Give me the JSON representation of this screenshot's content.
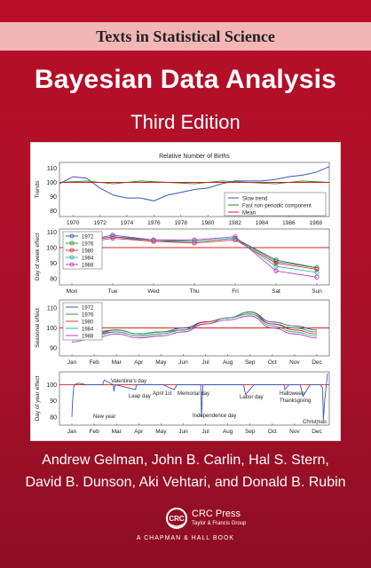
{
  "series": "Texts in Statistical Science",
  "title": "Bayesian Data Analysis",
  "edition": "Third Edition",
  "authors": {
    "line1": "Andrew Gelman, John B. Carlin, Hal S. Stern,",
    "line2": "David B. Dunson, Aki Vehtari, and Donald B. Rubin"
  },
  "publisher": {
    "logo_text": "CRC",
    "name": "CRC Press",
    "group": "Taylor & Francis Group",
    "imprint": "A CHAPMAN & HALL BOOK"
  },
  "colors": {
    "background": "#b3122a",
    "series_band": "#f2b7b5",
    "slow_trend": "#3b57b5",
    "fast_component": "#2a8a2a",
    "mean_line": "#d42020"
  },
  "chart_data": [
    {
      "type": "line",
      "title": "Relative Number of Births",
      "ylabel": "Trends",
      "x_ticks": [
        "1970",
        "1972",
        "1974",
        "1976",
        "1978",
        "1980",
        "1982",
        "1984",
        "1986",
        "1988"
      ],
      "xlim": [
        1969,
        1989
      ],
      "y_ticks": [
        "80",
        "90",
        "100",
        "110"
      ],
      "ylim": [
        76,
        114
      ],
      "legend_position": "bottom-right",
      "series": [
        {
          "name": "Slow trend",
          "color": "#3b57b5",
          "x": [
            1969,
            1970,
            1971,
            1972,
            1973,
            1974,
            1975,
            1976,
            1977,
            1978,
            1979,
            1980,
            1981,
            1982,
            1983,
            1984,
            1985,
            1986,
            1987,
            1988,
            1989
          ],
          "y": [
            99,
            104,
            103,
            96,
            91,
            89,
            89,
            87,
            91,
            93,
            95,
            96,
            99,
            101,
            101,
            101,
            102,
            104,
            105,
            107,
            111
          ]
        },
        {
          "name": "Fast non-periodic component",
          "color": "#2a8a2a",
          "x": [
            1969,
            1971,
            1973,
            1975,
            1977,
            1979,
            1981,
            1983,
            1985,
            1987,
            1989
          ],
          "y": [
            100,
            101,
            99,
            101,
            100,
            99,
            101,
            100,
            99,
            101,
            100
          ]
        },
        {
          "name": "Mean",
          "color": "#d42020",
          "x": [
            1969,
            1989
          ],
          "y": [
            100,
            100
          ]
        }
      ]
    },
    {
      "type": "line",
      "ylabel": "Day of week effect",
      "categories": [
        "Mon",
        "Tue",
        "Wed",
        "Thu",
        "Fri",
        "Sat",
        "Sun"
      ],
      "y_ticks": [
        "80",
        "90",
        "100",
        "110"
      ],
      "ylim": [
        76,
        112
      ],
      "legend_position": "top-left",
      "series": [
        {
          "name": "1972",
          "color": "#3050a0",
          "values": [
            103,
            108,
            105,
            104,
            106,
            92,
            87
          ]
        },
        {
          "name": "1976",
          "color": "#2a8a2a",
          "values": [
            103,
            107,
            104,
            104,
            106,
            91,
            87
          ]
        },
        {
          "name": "1980",
          "color": "#d42020",
          "values": [
            102,
            106,
            104,
            103,
            105,
            90,
            86
          ]
        },
        {
          "name": "1984",
          "color": "#20a8a8",
          "values": [
            103,
            107,
            105,
            104,
            106,
            88,
            84
          ]
        },
        {
          "name": "1988",
          "color": "#b030b0",
          "values": [
            103,
            107,
            105,
            105,
            107,
            85,
            81
          ]
        }
      ],
      "mean": 100
    },
    {
      "type": "line",
      "ylabel": "Seasonal effect",
      "categories": [
        "Jan",
        "Feb",
        "Mar",
        "Apr",
        "May",
        "Jun",
        "Jul",
        "Aug",
        "Sep",
        "Oct",
        "Nov",
        "Dec"
      ],
      "y_ticks": [
        "90",
        "100",
        "110"
      ],
      "ylim": [
        86,
        114
      ],
      "legend_position": "top-left",
      "series": [
        {
          "name": "1972",
          "color": "#3050a0",
          "values": [
            97,
            98,
            99,
            97,
            98,
            100,
            103,
            105,
            108,
            103,
            101,
            99
          ]
        },
        {
          "name": "1976",
          "color": "#2a8a2a",
          "values": [
            96,
            97,
            99,
            97,
            98,
            99,
            103,
            105,
            108,
            102,
            100,
            98
          ]
        },
        {
          "name": "1980",
          "color": "#d42020",
          "values": [
            95,
            97,
            98,
            96,
            97,
            99,
            103,
            105,
            107,
            102,
            99,
            97
          ]
        },
        {
          "name": "1984",
          "color": "#20a8a8",
          "values": [
            94,
            96,
            98,
            96,
            97,
            99,
            102,
            105,
            107,
            101,
            98,
            96
          ]
        },
        {
          "name": "1988",
          "color": "#b030b0",
          "values": [
            93,
            95,
            97,
            95,
            96,
            98,
            102,
            104,
            106,
            100,
            97,
            95
          ]
        }
      ],
      "mean": 100
    },
    {
      "type": "line",
      "ylabel": "Day of year effect",
      "categories": [
        "Jan",
        "Feb",
        "Mar",
        "Apr",
        "May",
        "Jun",
        "Jul",
        "Aug",
        "Sep",
        "Oct",
        "Nov",
        "Dec"
      ],
      "y_ticks": [
        "80",
        "90",
        "100"
      ],
      "ylim": [
        75,
        108
      ],
      "mean": 100,
      "annotations": [
        "Valentine's day",
        "Leap day",
        "April 1st",
        "Memorial day",
        "New year",
        "Independence day",
        "Labor day",
        "Halloween",
        "Thanksgiving",
        "Christmas"
      ],
      "series": [
        {
          "name": "Day of year effect",
          "color": "#3b57b5",
          "x": [
            0,
            1,
            3,
            10,
            20,
            30,
            44,
            46,
            59,
            60,
            62,
            91,
            92,
            110,
            130,
            146,
            150,
            170,
            184,
            185,
            187,
            200,
            220,
            245,
            248,
            260,
            280,
            303,
            304,
            310,
            326,
            330,
            340,
            355,
            358,
            359,
            361,
            365
          ],
          "y": [
            80,
            90,
            100,
            101,
            100,
            100,
            100,
            103,
            100,
            96,
            100,
            97,
            100,
            100,
            100,
            97,
            100,
            100,
            100,
            80,
            100,
            100,
            100,
            100,
            94,
            100,
            100,
            100,
            97,
            100,
            100,
            93,
            100,
            100,
            98,
            78,
            90,
            107
          ]
        }
      ]
    }
  ]
}
